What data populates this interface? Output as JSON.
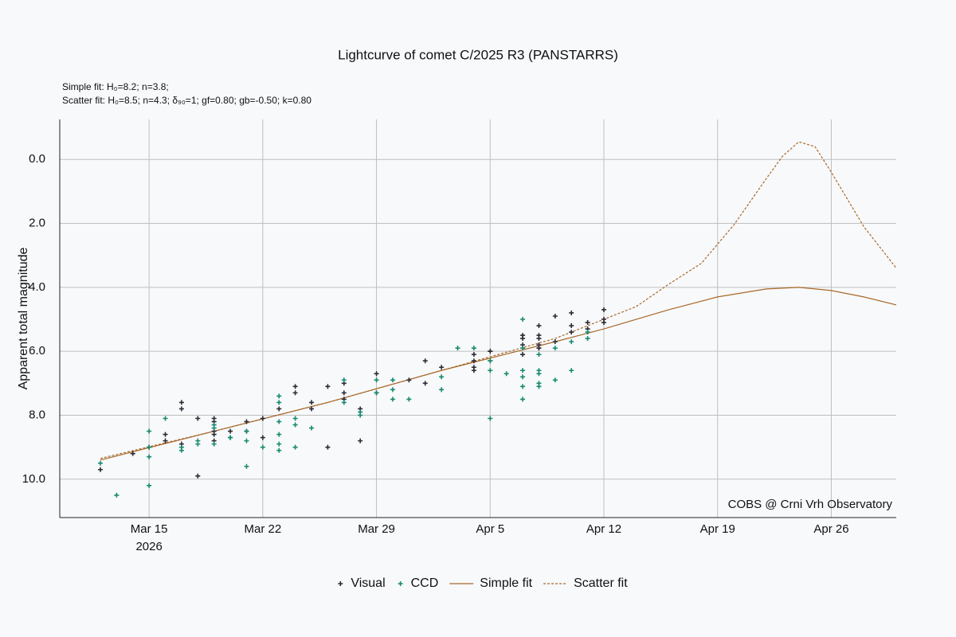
{
  "chart_data": {
    "type": "scatter",
    "title": "Lightcurve of comet C/2025 R3 (PANSTARRS)",
    "annotations": [
      "Simple fit: H₀=8.2; n=3.8;",
      "Scatter fit: H₀=8.5; n=4.3; δ₉₀=1; gf=0.80; gb=-0.50; k=0.80",
      "COBS @ Crni Vrh Observatory"
    ],
    "y_label": "Apparent total magnitude",
    "x_year_label": "2026",
    "xlim": [
      "2026-03-09T12:00Z",
      "2026-04-30T00:00Z"
    ],
    "xticks": [
      {
        "value": "2026-03-15",
        "label": "Mar 15"
      },
      {
        "value": "2026-03-22",
        "label": "Mar 22"
      },
      {
        "value": "2026-03-29",
        "label": "Mar 29"
      },
      {
        "value": "2026-04-05",
        "label": "Apr 5"
      },
      {
        "value": "2026-04-12",
        "label": "Apr 12"
      },
      {
        "value": "2026-04-19",
        "label": "Apr 19"
      },
      {
        "value": "2026-04-26",
        "label": "Apr 26"
      }
    ],
    "ylim": [
      11.2,
      -1.25
    ],
    "yticks": [
      {
        "value": 0,
        "label": "0.0"
      },
      {
        "value": 2,
        "label": "2.0"
      },
      {
        "value": 4,
        "label": "4.0"
      },
      {
        "value": 6,
        "label": "6.0"
      },
      {
        "value": 8,
        "label": "8.0"
      },
      {
        "value": 10,
        "label": "10.0"
      }
    ],
    "grid": true,
    "legend": "bottom",
    "series": [
      {
        "name": "Visual",
        "type": "scatter",
        "color": "#2b2b36",
        "x": [
          "2026-03-12",
          "2026-03-14",
          "2026-03-15",
          "2026-03-16",
          "2026-03-16",
          "2026-03-17",
          "2026-03-17",
          "2026-03-17",
          "2026-03-18",
          "2026-03-18",
          "2026-03-19",
          "2026-03-19",
          "2026-03-19",
          "2026-03-19",
          "2026-03-19",
          "2026-03-20",
          "2026-03-21",
          "2026-03-21",
          "2026-03-22",
          "2026-03-22",
          "2026-03-23",
          "2026-03-24",
          "2026-03-24",
          "2026-03-25",
          "2026-03-25",
          "2026-03-26",
          "2026-03-26",
          "2026-03-27",
          "2026-03-27",
          "2026-03-27",
          "2026-03-28",
          "2026-03-28",
          "2026-03-29",
          "2026-03-29",
          "2026-03-31",
          "2026-04-01",
          "2026-04-01",
          "2026-04-02",
          "2026-04-04",
          "2026-04-04",
          "2026-04-04",
          "2026-04-04",
          "2026-04-05",
          "2026-04-05",
          "2026-04-05",
          "2026-04-07",
          "2026-04-07",
          "2026-04-07",
          "2026-04-07",
          "2026-04-08",
          "2026-04-08",
          "2026-04-08",
          "2026-04-08",
          "2026-04-08",
          "2026-04-08",
          "2026-04-09",
          "2026-04-09",
          "2026-04-10",
          "2026-04-10",
          "2026-04-10",
          "2026-04-11",
          "2026-04-11",
          "2026-04-12",
          "2026-04-12",
          "2026-04-12"
        ],
        "values": [
          9.7,
          9.2,
          9.0,
          8.6,
          8.8,
          7.6,
          7.8,
          8.9,
          9.9,
          8.1,
          8.1,
          8.2,
          8.5,
          8.6,
          8.8,
          8.5,
          8.2,
          8.5,
          8.1,
          8.7,
          7.8,
          7.1,
          7.3,
          7.6,
          7.8,
          9.0,
          7.1,
          7.0,
          7.3,
          7.5,
          7.8,
          8.8,
          6.7,
          7.3,
          6.9,
          6.3,
          7.0,
          6.5,
          6.3,
          6.5,
          6.6,
          6.1,
          6.0,
          6.0,
          6.3,
          5.5,
          5.6,
          5.8,
          6.1,
          5.6,
          5.8,
          5.9,
          5.2,
          5.5,
          5.9,
          5.7,
          4.9,
          5.2,
          5.4,
          4.8,
          5.1,
          5.3,
          5.0,
          5.1,
          4.7
        ]
      },
      {
        "name": "CCD",
        "type": "scatter",
        "color": "#168a70",
        "x": [
          "2026-03-12",
          "2026-03-13",
          "2026-03-15",
          "2026-03-15",
          "2026-03-15",
          "2026-03-15",
          "2026-03-16",
          "2026-03-17",
          "2026-03-17",
          "2026-03-18",
          "2026-03-18",
          "2026-03-19",
          "2026-03-19",
          "2026-03-19",
          "2026-03-20",
          "2026-03-20",
          "2026-03-21",
          "2026-03-21",
          "2026-03-21",
          "2026-03-22",
          "2026-03-23",
          "2026-03-23",
          "2026-03-23",
          "2026-03-23",
          "2026-03-23",
          "2026-03-23",
          "2026-03-24",
          "2026-03-24",
          "2026-03-24",
          "2026-03-25",
          "2026-03-27",
          "2026-03-27",
          "2026-03-28",
          "2026-03-28",
          "2026-03-29",
          "2026-03-29",
          "2026-03-30",
          "2026-03-30",
          "2026-03-30",
          "2026-03-31",
          "2026-04-02",
          "2026-04-02",
          "2026-04-03",
          "2026-04-04",
          "2026-04-05",
          "2026-04-05",
          "2026-04-05",
          "2026-04-06",
          "2026-04-07",
          "2026-04-07",
          "2026-04-07",
          "2026-04-07",
          "2026-04-07",
          "2026-04-07",
          "2026-04-08",
          "2026-04-08",
          "2026-04-08",
          "2026-04-08",
          "2026-04-08",
          "2026-04-09",
          "2026-04-09",
          "2026-04-10",
          "2026-04-10",
          "2026-04-11",
          "2026-04-11"
        ],
        "values": [
          9.5,
          10.5,
          10.2,
          8.5,
          9.3,
          9.0,
          8.1,
          9.0,
          9.1,
          8.8,
          8.9,
          8.3,
          8.4,
          8.9,
          8.7,
          8.7,
          9.6,
          8.8,
          8.5,
          9.0,
          8.9,
          9.1,
          8.2,
          7.4,
          7.6,
          8.6,
          9.0,
          8.1,
          8.3,
          8.4,
          6.9,
          7.6,
          8.0,
          7.9,
          6.9,
          7.3,
          6.9,
          7.2,
          7.5,
          7.5,
          7.2,
          6.8,
          5.9,
          5.9,
          6.6,
          6.3,
          8.1,
          6.7,
          5.0,
          6.6,
          6.8,
          5.9,
          7.1,
          7.5,
          6.1,
          6.6,
          7.0,
          7.1,
          6.7,
          6.9,
          5.9,
          6.6,
          5.7,
          5.6,
          5.4
        ]
      },
      {
        "name": "Simple fit",
        "type": "line",
        "color": "#a8692a",
        "dash": false,
        "x": [
          "2026-03-12",
          "2026-03-19",
          "2026-03-26",
          "2026-04-02",
          "2026-04-09",
          "2026-04-12",
          "2026-04-16",
          "2026-04-19",
          "2026-04-22",
          "2026-04-24",
          "2026-04-26",
          "2026-04-28",
          "2026-04-30"
        ],
        "values": [
          9.4,
          8.5,
          7.6,
          6.6,
          5.7,
          5.3,
          4.7,
          4.3,
          4.05,
          4.0,
          4.1,
          4.3,
          4.55
        ]
      },
      {
        "name": "Scatter fit",
        "type": "line",
        "color": "#a8692a",
        "dash": true,
        "x": [
          "2026-03-12",
          "2026-03-19",
          "2026-03-26",
          "2026-04-02",
          "2026-04-09",
          "2026-04-12",
          "2026-04-14",
          "2026-04-16",
          "2026-04-18",
          "2026-04-20",
          "2026-04-22",
          "2026-04-23",
          "2026-04-24",
          "2026-04-25",
          "2026-04-26",
          "2026-04-27",
          "2026-04-28",
          "2026-04-29",
          "2026-04-30"
        ],
        "values": [
          9.35,
          8.5,
          7.6,
          6.6,
          5.6,
          5.0,
          4.6,
          3.9,
          3.25,
          2.05,
          0.6,
          -0.1,
          -0.55,
          -0.4,
          0.4,
          1.25,
          2.1,
          2.75,
          3.4
        ]
      }
    ]
  }
}
